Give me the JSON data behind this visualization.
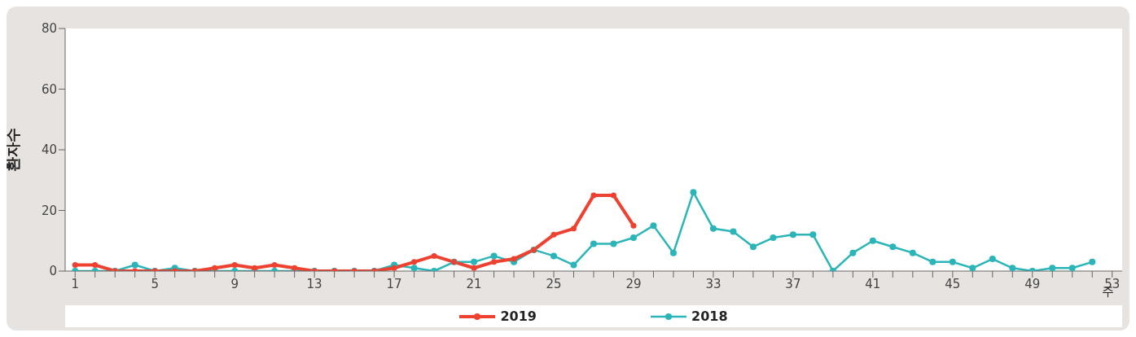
{
  "chart_data": {
    "type": "line",
    "ylabel": "환자수",
    "xlabel": "주",
    "xlim": [
      0.5,
      53.5
    ],
    "xticks": [
      1,
      {
        "value": 2,
        "label": null
      },
      {
        "value": 3,
        "label": null
      },
      {
        "value": 4,
        "label": null
      },
      5,
      {
        "value": 6,
        "label": null
      },
      {
        "value": 7,
        "label": null
      },
      {
        "value": 8,
        "label": null
      },
      9,
      {
        "value": 10,
        "label": null
      },
      {
        "value": 11,
        "label": null
      },
      {
        "value": 12,
        "label": null
      },
      13,
      {
        "value": 14,
        "label": null
      },
      {
        "value": 15,
        "label": null
      },
      {
        "value": 16,
        "label": null
      },
      17,
      {
        "value": 18,
        "label": null
      },
      {
        "value": 19,
        "label": null
      },
      {
        "value": 20,
        "label": null
      },
      21,
      {
        "value": 22,
        "label": null
      },
      {
        "value": 23,
        "label": null
      },
      {
        "value": 24,
        "label": null
      },
      25,
      {
        "value": 26,
        "label": null
      },
      {
        "value": 27,
        "label": null
      },
      {
        "value": 28,
        "label": null
      },
      29,
      {
        "value": 30,
        "label": null
      },
      {
        "value": 31,
        "label": null
      },
      {
        "value": 32,
        "label": null
      },
      33,
      {
        "value": 34,
        "label": null
      },
      {
        "value": 35,
        "label": null
      },
      {
        "value": 36,
        "label": null
      },
      37,
      {
        "value": 38,
        "label": null
      },
      {
        "value": 39,
        "label": null
      },
      {
        "value": 40,
        "label": null
      },
      41,
      {
        "value": 42,
        "label": null
      },
      {
        "value": 43,
        "label": null
      },
      {
        "value": 44,
        "label": null
      },
      45,
      {
        "value": 46,
        "label": null
      },
      {
        "value": 47,
        "label": null
      },
      {
        "value": 48,
        "label": null
      },
      49,
      {
        "value": 50,
        "label": null
      },
      {
        "value": 51,
        "label": null
      },
      {
        "value": 52,
        "label": null
      },
      53
    ],
    "ylim": [
      0,
      80
    ],
    "yticks": [
      0,
      20,
      40,
      60,
      80
    ],
    "grid": false,
    "legend": "bottom",
    "marker": "circle",
    "line_style": "solid",
    "series": [
      {
        "name": "2019",
        "color": "#ee4130",
        "x": [
          1,
          2,
          3,
          4,
          5,
          6,
          7,
          8,
          9,
          10,
          11,
          12,
          13,
          14,
          15,
          16,
          17,
          18,
          19,
          20,
          21,
          22,
          23,
          24,
          25,
          26,
          27,
          28,
          29
        ],
        "values": [
          2,
          2,
          0,
          0,
          0,
          0,
          0,
          1,
          2,
          1,
          2,
          1,
          0,
          0,
          0,
          0,
          1,
          3,
          5,
          3,
          1,
          3,
          4,
          7,
          12,
          14,
          25,
          25,
          15
        ]
      },
      {
        "name": "2018",
        "color": "#2bb5b8",
        "x": [
          1,
          2,
          3,
          4,
          5,
          6,
          7,
          8,
          9,
          10,
          11,
          12,
          13,
          14,
          15,
          16,
          17,
          18,
          19,
          20,
          21,
          22,
          23,
          24,
          25,
          26,
          27,
          28,
          29,
          30,
          31,
          32,
          33,
          34,
          35,
          36,
          37,
          38,
          39,
          40,
          41,
          42,
          43,
          44,
          45,
          46,
          47,
          48,
          49,
          50,
          51,
          52
        ],
        "values": [
          0,
          0,
          0,
          2,
          0,
          1,
          0,
          0,
          0,
          0,
          0,
          0,
          0,
          0,
          0,
          0,
          2,
          1,
          0,
          3,
          3,
          5,
          3,
          7,
          5,
          2,
          9,
          9,
          11,
          15,
          6,
          26,
          14,
          13,
          8,
          11,
          12,
          12,
          0,
          6,
          10,
          8,
          6,
          3,
          3,
          1,
          4,
          1,
          0,
          1,
          1,
          3
        ]
      }
    ]
  }
}
